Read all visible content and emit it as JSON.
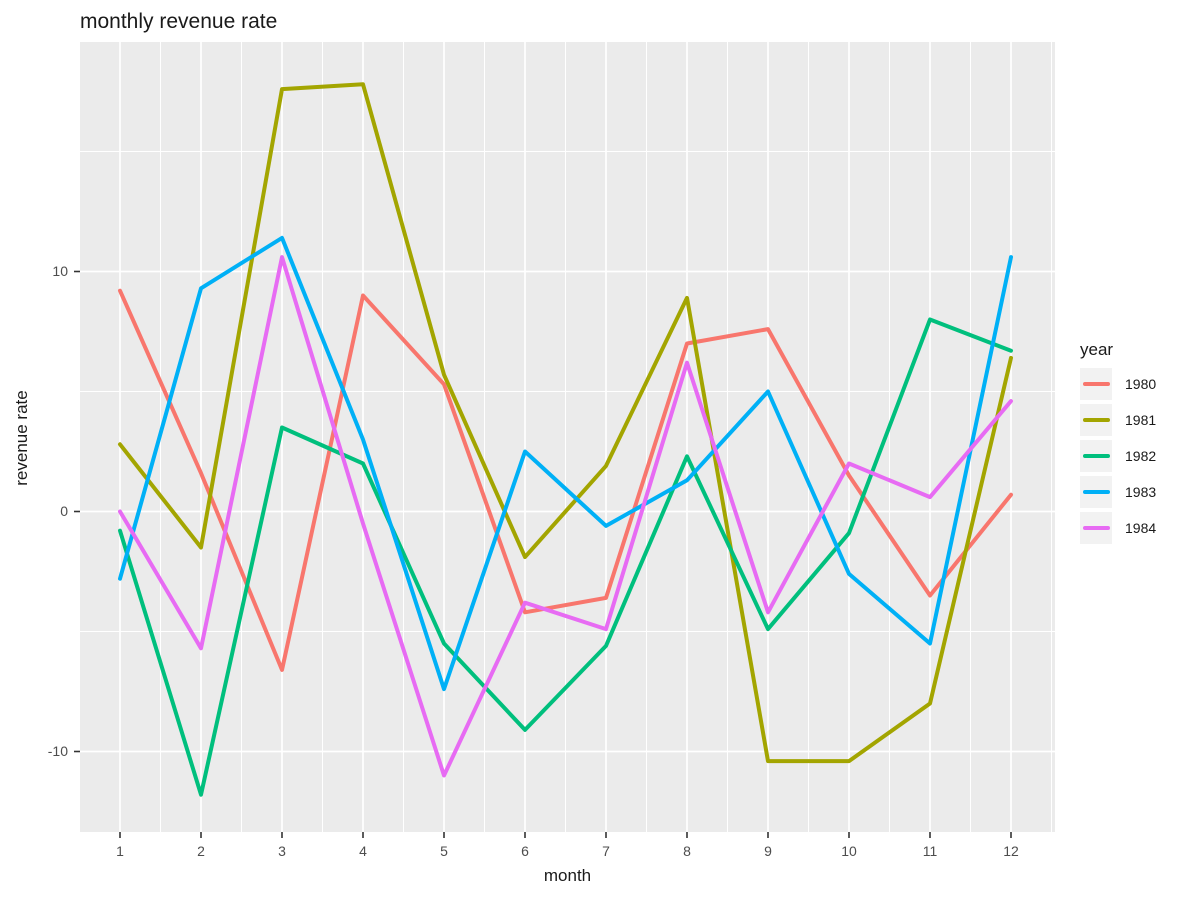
{
  "title": "monthly revenue rate",
  "axes": {
    "x_label": "month",
    "y_label": "revenue rate",
    "x_ticks": [
      "1",
      "2",
      "3",
      "4",
      "5",
      "6",
      "7",
      "8",
      "9",
      "10",
      "11",
      "12"
    ],
    "y_ticks": [
      "10",
      "0",
      "-10"
    ]
  },
  "legend": {
    "title": "year",
    "entries": [
      {
        "label": "1980",
        "color": "#F8766D"
      },
      {
        "label": "1981",
        "color": "#A3A500"
      },
      {
        "label": "1982",
        "color": "#00BF7D"
      },
      {
        "label": "1983",
        "color": "#00B0F6"
      },
      {
        "label": "1984",
        "color": "#E76BF3"
      }
    ]
  },
  "colors": {
    "panel_background": "#EBEBEB",
    "grid": "#FFFFFF",
    "tick_text": "#4D4D4D",
    "text": "#1A1A1A"
  },
  "chart_data": {
    "type": "line",
    "title": "monthly revenue rate",
    "xlabel": "month",
    "ylabel": "revenue rate",
    "x": [
      1,
      2,
      3,
      4,
      5,
      6,
      7,
      8,
      9,
      10,
      11,
      12
    ],
    "y_gridlines_major": [
      -10,
      0,
      10
    ],
    "y_gridlines_minor": [
      -5,
      5,
      15
    ],
    "ylim": [
      -13.3,
      19.6
    ],
    "grid": true,
    "legend_position": "right",
    "series": [
      {
        "name": "1980",
        "color": "#F8766D",
        "values": [
          9.2,
          1.6,
          -6.6,
          9.0,
          5.3,
          -4.2,
          -3.6,
          7.0,
          7.6,
          1.5,
          -3.5,
          0.7
        ]
      },
      {
        "name": "1981",
        "color": "#A3A500",
        "values": [
          2.8,
          -1.5,
          17.6,
          17.8,
          5.7,
          -1.9,
          1.9,
          8.9,
          -10.4,
          -10.4,
          -8.0,
          6.4
        ]
      },
      {
        "name": "1982",
        "color": "#00BF7D",
        "values": [
          -0.8,
          -11.8,
          3.5,
          2.0,
          -5.5,
          -9.1,
          -5.6,
          2.3,
          -4.9,
          -0.9,
          8.0,
          6.7
        ]
      },
      {
        "name": "1983",
        "color": "#00B0F6",
        "values": [
          -2.8,
          9.3,
          11.4,
          3.0,
          -7.4,
          2.5,
          -0.6,
          1.3,
          5.0,
          -2.6,
          -5.5,
          10.6
        ]
      },
      {
        "name": "1984",
        "color": "#E76BF3",
        "values": [
          0.0,
          -5.7,
          10.6,
          -0.5,
          -11.0,
          -3.8,
          -4.9,
          6.2,
          -4.2,
          2.0,
          0.6,
          4.6
        ]
      }
    ]
  }
}
